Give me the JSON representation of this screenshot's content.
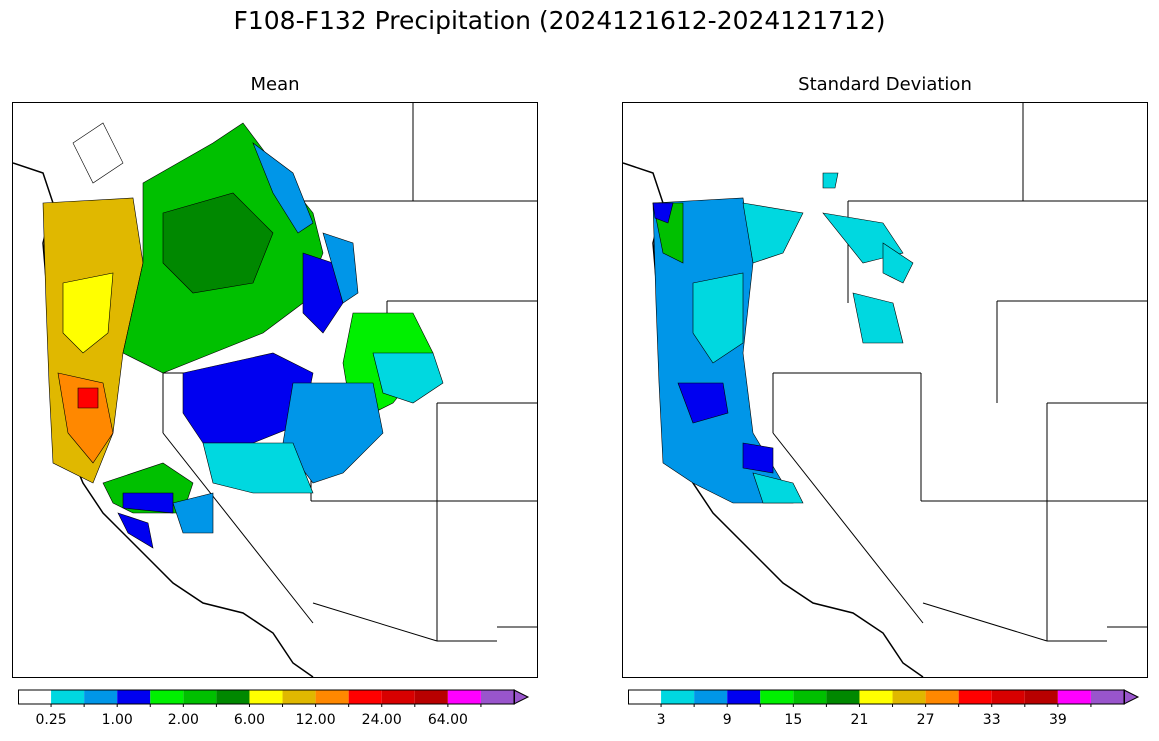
{
  "title": "F108-F132 Precipitation (2024121612-2024121712)",
  "panels": [
    {
      "title": "Mean",
      "colorbar": {
        "colors": [
          "#ffffff",
          "#00d8e0",
          "#0096e8",
          "#0000f0",
          "#00f000",
          "#00c000",
          "#008800",
          "#ffff00",
          "#e0b800",
          "#ff8800",
          "#ff0000",
          "#d80000",
          "#b80000",
          "#ff00ff",
          "#9955cc"
        ],
        "tick_labels": [
          "0.25",
          "1.00",
          "2.00",
          "6.00",
          "12.00",
          "24.00",
          "64.00"
        ],
        "extend": "max"
      }
    },
    {
      "title": "Standard Deviation",
      "colorbar": {
        "colors": [
          "#ffffff",
          "#00d8e0",
          "#0096e8",
          "#0000f0",
          "#00f000",
          "#00c000",
          "#008800",
          "#ffff00",
          "#e0b800",
          "#ff8800",
          "#ff0000",
          "#d80000",
          "#b80000",
          "#ff00ff",
          "#9955cc"
        ],
        "tick_labels": [
          "3",
          "9",
          "15",
          "21",
          "27",
          "33",
          "39"
        ],
        "extend": "max"
      }
    }
  ]
}
